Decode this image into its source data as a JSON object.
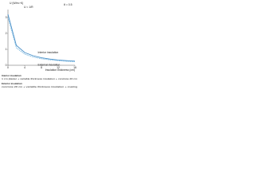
{
  "chart_data": {
    "type": "line",
    "ylabel": "U (W/m²·K)",
    "xlabel": "Insulation thickness (cm)",
    "formula": "U = 1/R",
    "condition": "θ = 0.5",
    "x": [
      0,
      2,
      4,
      6,
      8,
      10,
      12,
      14,
      16
    ],
    "series": [
      {
        "name": "Interior insulation",
        "color": "#4a90c8",
        "values": [
          3.2,
          1.25,
          0.8,
          0.6,
          0.47,
          0.39,
          0.33,
          0.29,
          0.26
        ]
      },
      {
        "name": "External insulation",
        "color": "#7ab8e0",
        "values": [
          3.0,
          1.1,
          0.7,
          0.52,
          0.41,
          0.34,
          0.29,
          0.25,
          0.22
        ]
      }
    ],
    "xlim": [
      0,
      16
    ],
    "xticks": [
      0,
      4,
      8,
      12,
      16
    ],
    "ylim": [
      0,
      3.5
    ],
    "yticks": [
      0,
      1,
      2,
      3
    ],
    "notes": [
      {
        "label": "Interior insulation:",
        "text": "1 cm plaster + variable thickness insulation + concrete 20 cm"
      },
      {
        "label": "Exterior insulation:",
        "text": "concrete 20 cm + variable thickness insulation + coating"
      }
    ]
  }
}
